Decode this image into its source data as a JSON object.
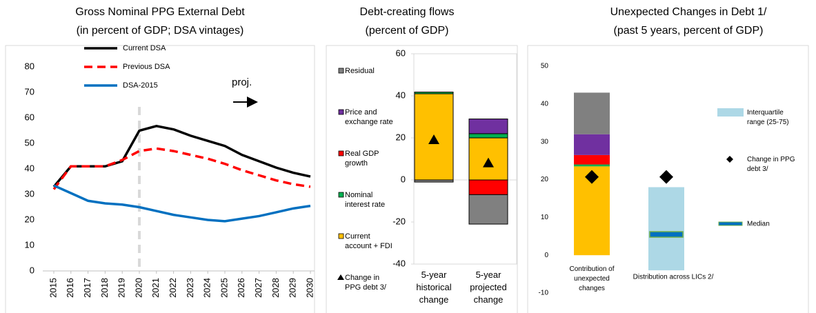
{
  "chart_data": [
    {
      "type": "line",
      "title": "Gross Nominal PPG External Debt",
      "subtitle": "(in percent of GDP; DSA vintages)",
      "x": [
        2015,
        2016,
        2017,
        2018,
        2019,
        2020,
        2021,
        2022,
        2023,
        2024,
        2025,
        2026,
        2027,
        2028,
        2029,
        2030
      ],
      "xlim": [
        2015,
        2030
      ],
      "ylim": [
        0,
        80
      ],
      "yticks": [
        0,
        10,
        20,
        30,
        40,
        50,
        60,
        70,
        80
      ],
      "grid": false,
      "vline_x": 2020,
      "annotation": "proj.",
      "series": [
        {
          "name": "Current DSA",
          "color": "#000000",
          "dash": false,
          "values": [
            33,
            41,
            41,
            41,
            43,
            55,
            56.8,
            55.5,
            53,
            51,
            49,
            45.5,
            43,
            40.5,
            38.5,
            37
          ]
        },
        {
          "name": "Previous DSA",
          "color": "#ff0000",
          "dash": true,
          "values": [
            32,
            41,
            41,
            41,
            43.5,
            47,
            48,
            47,
            45.5,
            44,
            42,
            39.5,
            37.5,
            35.5,
            34,
            33
          ]
        },
        {
          "name": "DSA-2015",
          "color": "#0070c0",
          "dash": false,
          "values": [
            33.5,
            30.5,
            27.5,
            26.5,
            26,
            25,
            23.5,
            22,
            21,
            20,
            19.5,
            20.5,
            21.5,
            23,
            24.5,
            25.5
          ]
        }
      ]
    },
    {
      "type": "stacked-bar",
      "title": "Debt-creating flows",
      "subtitle": "(percent of GDP)",
      "categories": [
        "5-year historical change",
        "5-year projected change"
      ],
      "ylim": [
        -40,
        60
      ],
      "yticks": [
        -40,
        -20,
        0,
        20,
        40,
        60
      ],
      "series": [
        {
          "name": "Residual",
          "color": "#808080",
          "values": [
            -1,
            -14
          ]
        },
        {
          "name": "Price and exchange rate",
          "color": "#7030a0",
          "values": [
            0,
            7
          ]
        },
        {
          "name": "Real GDP growth",
          "color": "#ff0000",
          "values": [
            0,
            -7
          ]
        },
        {
          "name": "Nominal interest rate",
          "color": "#00b050",
          "values": [
            0.8,
            2
          ]
        },
        {
          "name": "Current account + FDI",
          "color": "#ffc000",
          "values": [
            41,
            20
          ]
        }
      ],
      "markers": {
        "name": "Change in PPG debt 3/",
        "color": "#000000",
        "values": [
          19,
          8
        ]
      }
    },
    {
      "type": "range-bar",
      "title": "Unexpected Changes in Debt 1/",
      "subtitle": "(past 5 years, percent of GDP)",
      "categories": [
        "Contribution of unexpected changes",
        "Distribution across LICs 2/"
      ],
      "ylim": [
        -10,
        50
      ],
      "yticks": [
        -10,
        0,
        10,
        20,
        30,
        40,
        50
      ],
      "contributions": {
        "colors": [
          "#ffc000",
          "#00b050",
          "#ff0000",
          "#7030a0",
          "#808080"
        ],
        "values": [
          23.5,
          0.5,
          2.5,
          5.5,
          11
        ]
      },
      "interquartile": {
        "name": "Interquartile range (25-75)",
        "color": "#add8e6",
        "values": [
          -4,
          18
        ]
      },
      "change": {
        "name": "Change in PPG debt 3/",
        "color": "#000000",
        "values": [
          20.7,
          20.7
        ]
      },
      "median": {
        "name": "Median",
        "color": "#0070c0",
        "value": 5.5
      }
    }
  ]
}
